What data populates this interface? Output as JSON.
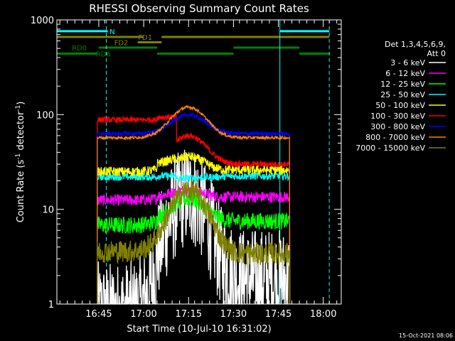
{
  "chart_data": {
    "type": "line",
    "title": "RHESSI Observing Summary Count Rates",
    "xlabel": "Start Time (10-Jul-10 16:31:02)",
    "ylabel": "Count Rate (s⁻¹ detector⁻¹)",
    "ylabel_parts": [
      "Count Rate (s",
      "-1",
      " detector",
      "-1",
      ")"
    ],
    "y_scale": "log",
    "ylim": [
      1,
      1000
    ],
    "xlim_minutes": [
      0,
      95
    ],
    "x_tick_minutes": [
      14,
      29,
      44,
      59,
      74,
      89
    ],
    "x_tick_labels": [
      "16:45",
      "17:00",
      "17:15",
      "17:30",
      "17:45",
      "18:00"
    ],
    "y_tick_values": [
      1,
      10,
      100,
      1000
    ],
    "y_tick_labels": [
      "1",
      "10",
      "100",
      "1000"
    ],
    "legend_header": [
      "Det 1,3,4,5,6,9,",
      "Att 0"
    ],
    "legend_position": "right",
    "footer_date": "15-Oct-2021 08:06",
    "grid": false,
    "night_intervals_minutes": [
      [
        0,
        13.5
      ],
      [
        74.5,
        95
      ]
    ],
    "data_gaps_minutes": [
      [
        0,
        13.5
      ],
      [
        77.8,
        95
      ]
    ],
    "guide_lines_minutes": [
      0,
      16.5,
      74.5,
      91
    ],
    "flag_bars": [
      {
        "label": "N",
        "color": "#00ffff",
        "level": 760,
        "segments": [
          [
            0,
            17
          ],
          [
            74.5,
            91
          ]
        ],
        "label_x": 18.5
      },
      {
        "label": "FD1",
        "color": "#808000",
        "level": 660,
        "segments": [
          [
            0,
            29
          ],
          [
            35,
            91
          ]
        ],
        "label_x": 29.5
      },
      {
        "label": "FD2",
        "color": "#808000",
        "level": 580,
        "segments": [
          [
            27,
            35
          ]
        ],
        "label_x": 21.5
      },
      {
        "label": "RD0",
        "color": "#008000",
        "level": 510,
        "segments": [
          [
            14,
            33.5
          ],
          [
            59,
            81
          ]
        ],
        "label_x": 7.5
      },
      {
        "label": "RD6",
        "color": "#008000",
        "level": 440,
        "segments": [
          [
            0,
            13.5
          ],
          [
            33.5,
            59
          ],
          [
            81,
            91
          ]
        ],
        "label_x": 15.5
      }
    ],
    "series": [
      {
        "name": "3 - 6 keV",
        "color": "#ffffff",
        "base": [
          0.8,
          1.8,
          1.1,
          1.8,
          1.0
        ],
        "peak": 14,
        "noise": 0.55
      },
      {
        "name": "6 - 12 keV",
        "color": "#ff00ff",
        "base": [
          12.5,
          13.5,
          12.0,
          13.5,
          12.5
        ],
        "peak": 16,
        "noise": 0.06
      },
      {
        "name": "12 - 25 keV",
        "color": "#00ff00",
        "base": [
          6.8,
          7.5,
          6.4,
          7.5,
          7.0
        ],
        "peak": 13,
        "noise": 0.09
      },
      {
        "name": "25 - 50 keV",
        "color": "#00ffff",
        "base": [
          22.0,
          22.5,
          21.0,
          22.5,
          22.0
        ],
        "peak": 14,
        "noise": 0.04
      },
      {
        "name": "50 - 100 keV",
        "color": "#ffff00",
        "base": [
          25,
          30,
          22,
          26,
          25
        ],
        "peak": 36,
        "noise": 0.05
      },
      {
        "name": "100 - 300 keV",
        "color": "#ff0000",
        "base": [
          88,
          94,
          28,
          30,
          90
        ],
        "peak": 60,
        "noise": 0.03
      },
      {
        "name": "300 - 800 keV",
        "color": "#0000ff",
        "base": [
          63,
          62,
          60,
          63,
          63
        ],
        "peak": 100,
        "noise": 0.02
      },
      {
        "name": "800 - 7000 keV",
        "color": "#ff8000",
        "base": [
          57,
          57,
          55,
          57,
          57
        ],
        "peak": 120,
        "noise": 0.015
      },
      {
        "name": "7000 - 15000 keV",
        "color": "#808000",
        "base": [
          3.6,
          3.4,
          3.2,
          3.4,
          3.5
        ],
        "peak": 16,
        "noise": 0.12
      }
    ],
    "segment_bounds_minutes": [
      13.5,
      33.5,
      40.0,
      59.0,
      77.8
    ],
    "peak_minute": 44,
    "peak_width_minutes": 7.5
  }
}
